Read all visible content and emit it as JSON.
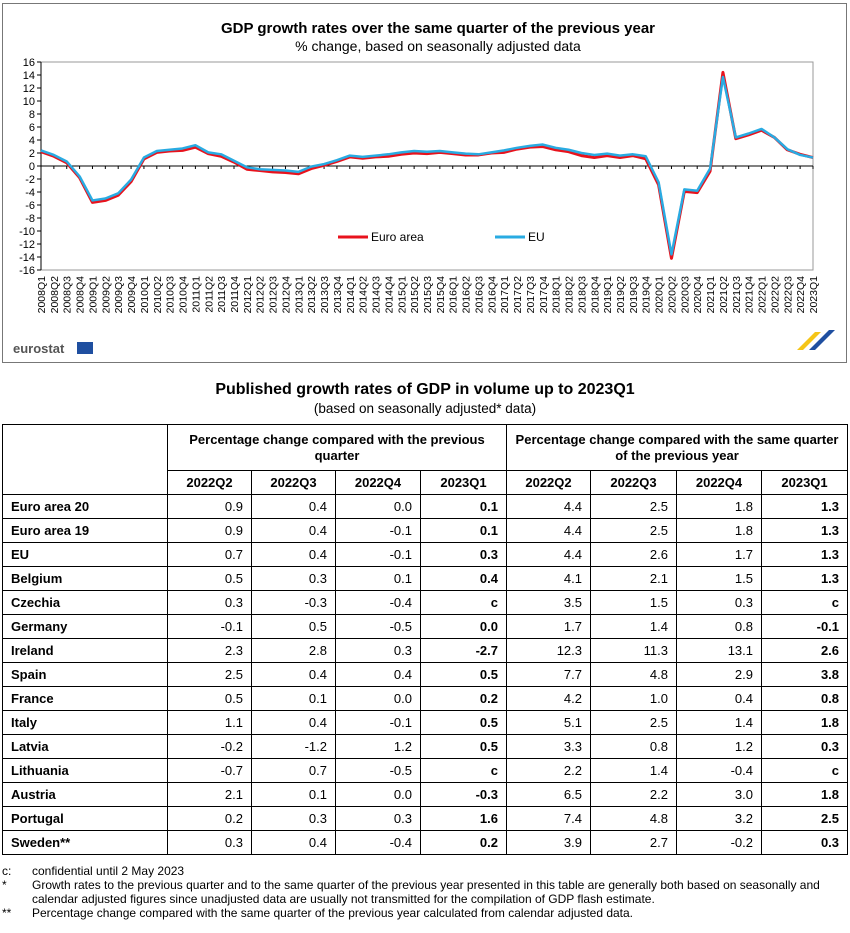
{
  "chart": {
    "title": "GDP growth rates over the same quarter of the previous year",
    "subtitle": "% change, based on seasonally adjusted data",
    "logo_text": "eurostat",
    "colors": {
      "euro_area": "#e8121c",
      "eu": "#29abe2",
      "axis": "#000000",
      "grid": "#aaaaaa"
    }
  },
  "chart_data": {
    "type": "line",
    "title": "GDP growth rates over the same quarter of the previous year",
    "subtitle": "% change, based on seasonally adjusted data",
    "ylim": [
      -16,
      16
    ],
    "yticks": [
      16,
      14,
      12,
      10,
      8,
      6,
      4,
      2,
      0,
      -2,
      -4,
      -6,
      -8,
      -10,
      -12,
      -14,
      -16
    ],
    "legend_position": "center",
    "x": [
      "2008Q1",
      "2008Q2",
      "2008Q3",
      "2008Q4",
      "2009Q1",
      "2009Q2",
      "2009Q3",
      "2009Q4",
      "2010Q1",
      "2010Q2",
      "2010Q3",
      "2010Q4",
      "2011Q1",
      "2011Q2",
      "2011Q3",
      "2011Q4",
      "2012Q1",
      "2012Q2",
      "2012Q3",
      "2012Q4",
      "2013Q1",
      "2013Q2",
      "2013Q3",
      "2013Q4",
      "2014Q1",
      "2014Q2",
      "2014Q3",
      "2014Q4",
      "2015Q1",
      "2015Q2",
      "2015Q3",
      "2015Q4",
      "2016Q1",
      "2016Q2",
      "2016Q3",
      "2016Q4",
      "2017Q1",
      "2017Q2",
      "2017Q3",
      "2017Q4",
      "2018Q1",
      "2018Q2",
      "2018Q3",
      "2018Q4",
      "2019Q1",
      "2019Q2",
      "2019Q3",
      "2019Q4",
      "2020Q1",
      "2020Q2",
      "2020Q3",
      "2020Q4",
      "2021Q1",
      "2021Q2",
      "2021Q3",
      "2021Q4",
      "2022Q1",
      "2022Q2",
      "2022Q3",
      "2022Q4",
      "2023Q1"
    ],
    "series": [
      {
        "name": "Euro area",
        "color": "#e8121c",
        "values": [
          2.2,
          1.5,
          0.5,
          -1.8,
          -5.6,
          -5.3,
          -4.5,
          -2.4,
          1.1,
          2.1,
          2.3,
          2.4,
          2.9,
          1.9,
          1.5,
          0.6,
          -0.5,
          -0.7,
          -0.9,
          -1.0,
          -1.2,
          -0.4,
          0.1,
          0.7,
          1.4,
          1.2,
          1.4,
          1.5,
          1.8,
          2.0,
          1.9,
          2.1,
          1.9,
          1.7,
          1.7,
          2.0,
          2.1,
          2.6,
          2.9,
          3.0,
          2.5,
          2.2,
          1.6,
          1.3,
          1.6,
          1.3,
          1.6,
          1.1,
          -2.9,
          -14.2,
          -3.9,
          -4.1,
          -0.8,
          14.4,
          4.2,
          4.8,
          5.5,
          4.4,
          2.5,
          1.8,
          1.3
        ]
      },
      {
        "name": "EU",
        "color": "#29abe2",
        "values": [
          2.4,
          1.7,
          0.7,
          -1.6,
          -5.3,
          -5.0,
          -4.2,
          -2.1,
          1.3,
          2.3,
          2.5,
          2.7,
          3.2,
          2.1,
          1.8,
          0.8,
          -0.2,
          -0.5,
          -0.6,
          -0.7,
          -0.9,
          -0.1,
          0.3,
          0.9,
          1.6,
          1.4,
          1.6,
          1.8,
          2.1,
          2.3,
          2.2,
          2.3,
          2.1,
          1.9,
          1.8,
          2.1,
          2.4,
          2.8,
          3.1,
          3.3,
          2.8,
          2.5,
          2.0,
          1.7,
          1.9,
          1.6,
          1.8,
          1.5,
          -2.5,
          -13.6,
          -3.6,
          -3.8,
          -0.4,
          13.7,
          4.4,
          5.0,
          5.7,
          4.4,
          2.6,
          1.7,
          1.3
        ]
      }
    ]
  },
  "table": {
    "title": "Published growth rates of GDP in volume up to 2023Q1",
    "subtitle": "(based on seasonally adjusted* data)",
    "group_headers": [
      "Percentage change compared with the previous quarter",
      "Percentage change compared with the same quarter of the previous year"
    ],
    "columns": [
      "2022Q2",
      "2022Q3",
      "2022Q4",
      "2023Q1",
      "2022Q2",
      "2022Q3",
      "2022Q4",
      "2023Q1"
    ],
    "rows": [
      {
        "name": "Euro area 20",
        "values": [
          "0.9",
          "0.4",
          "0.0",
          "0.1",
          "4.4",
          "2.5",
          "1.8",
          "1.3"
        ]
      },
      {
        "name": "Euro area 19",
        "values": [
          "0.9",
          "0.4",
          "-0.1",
          "0.1",
          "4.4",
          "2.5",
          "1.8",
          "1.3"
        ]
      },
      {
        "name": "EU",
        "values": [
          "0.7",
          "0.4",
          "-0.1",
          "0.3",
          "4.4",
          "2.6",
          "1.7",
          "1.3"
        ]
      },
      {
        "name": "Belgium",
        "values": [
          "0.5",
          "0.3",
          "0.1",
          "0.4",
          "4.1",
          "2.1",
          "1.5",
          "1.3"
        ]
      },
      {
        "name": "Czechia",
        "values": [
          "0.3",
          "-0.3",
          "-0.4",
          "c",
          "3.5",
          "1.5",
          "0.3",
          "c"
        ]
      },
      {
        "name": "Germany",
        "values": [
          "-0.1",
          "0.5",
          "-0.5",
          "0.0",
          "1.7",
          "1.4",
          "0.8",
          "-0.1"
        ]
      },
      {
        "name": "Ireland",
        "values": [
          "2.3",
          "2.8",
          "0.3",
          "-2.7",
          "12.3",
          "11.3",
          "13.1",
          "2.6"
        ]
      },
      {
        "name": "Spain",
        "values": [
          "2.5",
          "0.4",
          "0.4",
          "0.5",
          "7.7",
          "4.8",
          "2.9",
          "3.8"
        ]
      },
      {
        "name": "France",
        "values": [
          "0.5",
          "0.1",
          "0.0",
          "0.2",
          "4.2",
          "1.0",
          "0.4",
          "0.8"
        ]
      },
      {
        "name": "Italy",
        "values": [
          "1.1",
          "0.4",
          "-0.1",
          "0.5",
          "5.1",
          "2.5",
          "1.4",
          "1.8"
        ]
      },
      {
        "name": "Latvia",
        "values": [
          "-0.2",
          "-1.2",
          "1.2",
          "0.5",
          "3.3",
          "0.8",
          "1.2",
          "0.3"
        ]
      },
      {
        "name": "Lithuania",
        "values": [
          "-0.7",
          "0.7",
          "-0.5",
          "c",
          "2.2",
          "1.4",
          "-0.4",
          "c"
        ]
      },
      {
        "name": "Austria",
        "values": [
          "2.1",
          "0.1",
          "0.0",
          "-0.3",
          "6.5",
          "2.2",
          "3.0",
          "1.8"
        ]
      },
      {
        "name": "Portugal",
        "values": [
          "0.2",
          "0.3",
          "0.3",
          "1.6",
          "7.4",
          "4.8",
          "3.2",
          "2.5"
        ]
      },
      {
        "name": "Sweden**",
        "values": [
          "0.3",
          "0.4",
          "-0.4",
          "0.2",
          "3.9",
          "2.7",
          "-0.2",
          "0.3"
        ]
      }
    ]
  },
  "notes": [
    {
      "mark": "c:",
      "text": "confidential until 2 May 2023"
    },
    {
      "mark": "*",
      "text": "Growth rates to the previous quarter and to the same quarter of the previous year presented in this table are generally both based on seasonally and calendar adjusted figures since unadjusted data are usually not transmitted for the compilation of GDP flash estimate."
    },
    {
      "mark": "**",
      "text": "Percentage change compared with the same quarter of the previous year calculated from calendar adjusted data."
    }
  ]
}
